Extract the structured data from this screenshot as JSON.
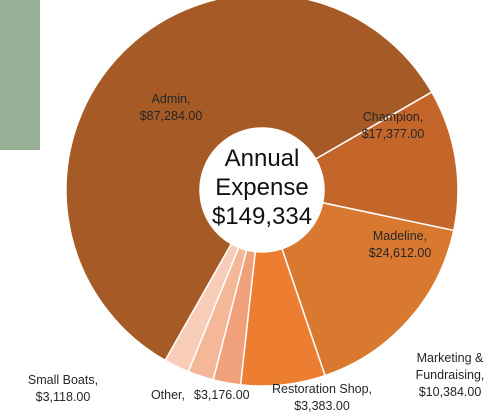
{
  "chart_data": {
    "type": "donut",
    "title": "Annual Expense",
    "center_label": "$149,334",
    "categories": [
      "Admin,",
      "Champion,",
      "Madeline,",
      "Marketing & Fundraising,",
      "Restoration Shop,",
      "Other,",
      "Small Boats,"
    ],
    "values": [
      87284,
      17377,
      24612,
      10384,
      3383,
      3176,
      3118
    ],
    "value_labels": [
      "$87,284.00",
      "$17,377.00",
      "$24,612.00",
      "$10,384.00",
      "$3,383.00",
      "$3,176.00",
      "$3,118.00"
    ],
    "colors": [
      "#a65a26",
      "#c4662a",
      "#d9782f",
      "#ed7d31",
      "#f0a07a",
      "#f4b898",
      "#f8cdb8"
    ]
  }
}
